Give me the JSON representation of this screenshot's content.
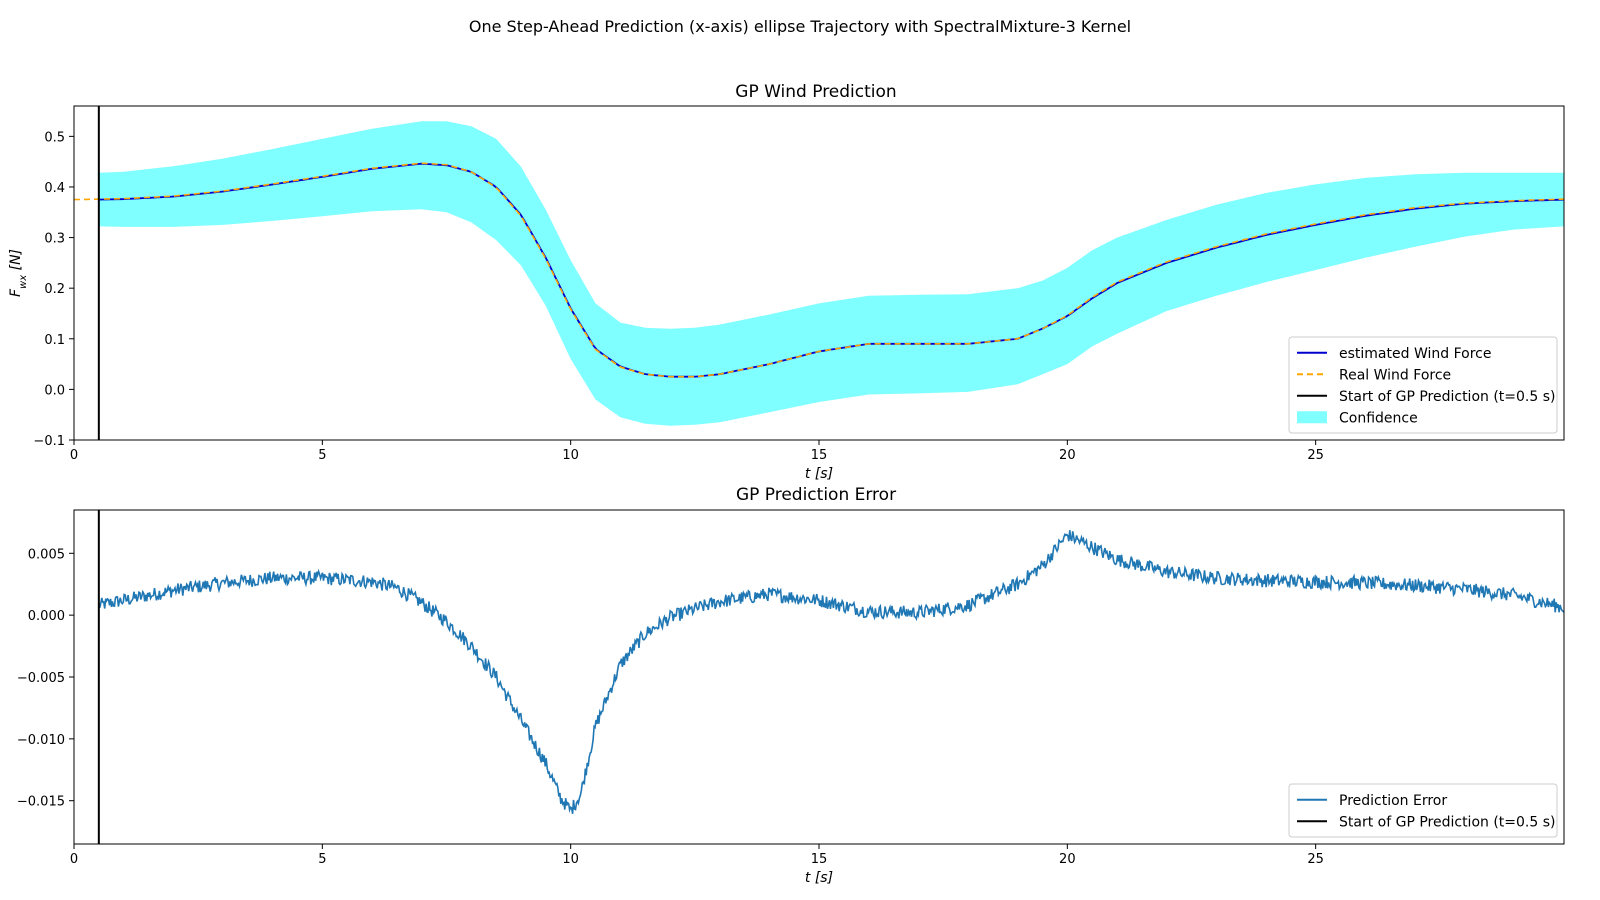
{
  "figure": {
    "title": "One Step-Ahead Prediction (x-axis) ellipse Trajectory with SpectralMixture-3 Kernel"
  },
  "colors": {
    "estimated": "#0000cc",
    "real": "#ffa500",
    "start_line": "#000000",
    "confidence": "#00ffff",
    "error": "#1f77b4"
  },
  "chart_data": [
    {
      "type": "line",
      "title": "GP Wind Prediction",
      "xlabel": "t [s]",
      "ylabel": "F_wx [N]",
      "ylabel_main": "F",
      "ylabel_sub": "wx",
      "ylabel_unit": " [N]",
      "xlim": [
        0,
        30
      ],
      "ylim": [
        -0.1,
        0.56
      ],
      "xticks": [
        0,
        5,
        10,
        15,
        20,
        25
      ],
      "xtick_labels": [
        "0",
        "5",
        "10",
        "15",
        "20",
        "25"
      ],
      "yticks": [
        -0.1,
        0.0,
        0.1,
        0.2,
        0.3,
        0.4,
        0.5
      ],
      "ytick_labels": [
        "−0.1",
        "0.0",
        "0.1",
        "0.2",
        "0.3",
        "0.4",
        "0.5"
      ],
      "grid": false,
      "legend_position": "lower-right",
      "vline_x": 0.5,
      "series": [
        {
          "name": "estimated Wind Force",
          "style": "solid",
          "x": [
            0.5,
            1,
            2,
            3,
            4,
            5,
            6,
            7,
            7.5,
            8,
            8.5,
            9,
            9.5,
            10,
            10.5,
            11,
            11.5,
            12,
            12.5,
            13,
            14,
            15,
            16,
            17,
            18,
            19,
            19.5,
            20,
            20.5,
            21,
            22,
            23,
            24,
            25,
            26,
            27,
            28,
            29,
            30
          ],
          "y": [
            0.375,
            0.376,
            0.381,
            0.391,
            0.405,
            0.42,
            0.436,
            0.446,
            0.443,
            0.43,
            0.4,
            0.345,
            0.26,
            0.16,
            0.08,
            0.045,
            0.03,
            0.025,
            0.025,
            0.03,
            0.05,
            0.075,
            0.09,
            0.09,
            0.09,
            0.1,
            0.12,
            0.145,
            0.18,
            0.21,
            0.25,
            0.28,
            0.305,
            0.325,
            0.343,
            0.357,
            0.367,
            0.372,
            0.375
          ]
        },
        {
          "name": "Real Wind Force",
          "style": "dashed",
          "x": [
            0,
            0.5,
            1,
            2,
            3,
            4,
            5,
            6,
            7,
            7.5,
            8,
            8.5,
            9,
            9.5,
            10,
            10.5,
            11,
            11.5,
            12,
            12.5,
            13,
            14,
            15,
            16,
            17,
            18,
            19,
            19.5,
            20,
            20.5,
            21,
            22,
            23,
            24,
            25,
            26,
            27,
            28,
            29,
            30
          ],
          "y": [
            0.375,
            0.376,
            0.377,
            0.382,
            0.392,
            0.406,
            0.421,
            0.437,
            0.447,
            0.444,
            0.43,
            0.399,
            0.343,
            0.258,
            0.158,
            0.079,
            0.044,
            0.03,
            0.025,
            0.025,
            0.03,
            0.05,
            0.075,
            0.09,
            0.09,
            0.09,
            0.1,
            0.12,
            0.146,
            0.182,
            0.212,
            0.252,
            0.282,
            0.307,
            0.327,
            0.345,
            0.359,
            0.368,
            0.373,
            0.376
          ]
        },
        {
          "name": "Confidence",
          "style": "band",
          "x": [
            0.5,
            1,
            2,
            3,
            4,
            5,
            6,
            7,
            7.5,
            8,
            8.5,
            9,
            9.5,
            10,
            10.5,
            11,
            11.5,
            12,
            12.5,
            13,
            14,
            15,
            16,
            17,
            18,
            19,
            19.5,
            20,
            20.5,
            21,
            22,
            23,
            24,
            25,
            26,
            27,
            28,
            29,
            30
          ],
          "lower": [
            0.322,
            0.321,
            0.321,
            0.325,
            0.333,
            0.342,
            0.352,
            0.356,
            0.35,
            0.33,
            0.295,
            0.245,
            0.165,
            0.06,
            -0.02,
            -0.055,
            -0.068,
            -0.072,
            -0.07,
            -0.065,
            -0.045,
            -0.025,
            -0.01,
            -0.008,
            -0.005,
            0.01,
            0.03,
            0.05,
            0.085,
            0.11,
            0.155,
            0.185,
            0.212,
            0.236,
            0.26,
            0.282,
            0.302,
            0.316,
            0.322
          ],
          "upper": [
            0.428,
            0.43,
            0.441,
            0.456,
            0.475,
            0.495,
            0.515,
            0.53,
            0.53,
            0.52,
            0.495,
            0.44,
            0.355,
            0.255,
            0.17,
            0.132,
            0.122,
            0.12,
            0.122,
            0.128,
            0.148,
            0.17,
            0.185,
            0.187,
            0.188,
            0.2,
            0.215,
            0.24,
            0.275,
            0.3,
            0.335,
            0.365,
            0.388,
            0.405,
            0.418,
            0.425,
            0.428,
            0.428,
            0.428
          ]
        }
      ],
      "legend": [
        {
          "label": "estimated Wind Force",
          "kind": "solid",
          "color_key": "estimated"
        },
        {
          "label": "Real Wind Force",
          "kind": "dashed",
          "color_key": "real"
        },
        {
          "label": "Start of GP Prediction (t=0.5 s)",
          "kind": "solid",
          "color_key": "start_line"
        },
        {
          "label": "Confidence",
          "kind": "patch",
          "color_key": "confidence"
        }
      ]
    },
    {
      "type": "line",
      "title": "GP Prediction Error",
      "xlabel": "t [s]",
      "xlim": [
        0,
        30
      ],
      "ylim": [
        -0.0185,
        0.0085
      ],
      "xticks": [
        0,
        5,
        10,
        15,
        20,
        25
      ],
      "xtick_labels": [
        "0",
        "5",
        "10",
        "15",
        "20",
        "25"
      ],
      "yticks": [
        -0.015,
        -0.01,
        -0.005,
        0.0,
        0.005
      ],
      "ytick_labels": [
        "−0.015",
        "−0.010",
        "−0.005",
        "0.000",
        "0.005"
      ],
      "grid": false,
      "legend_position": "lower-right",
      "vline_x": 0.5,
      "series": [
        {
          "name": "Prediction Error",
          "x": [
            0.5,
            1,
            2,
            3,
            4,
            5,
            6,
            6.5,
            7,
            7.5,
            8,
            8.5,
            9,
            9.5,
            9.8,
            10,
            10.2,
            10.5,
            11,
            11.5,
            12,
            12.5,
            13,
            14,
            15,
            16,
            17,
            18,
            19,
            19.5,
            20,
            20.5,
            21,
            22,
            23,
            24,
            25,
            26,
            27,
            28,
            29,
            30
          ],
          "y": [
            0.0008,
            0.0012,
            0.002,
            0.0026,
            0.003,
            0.003,
            0.0027,
            0.0022,
            0.001,
            -0.0005,
            -0.0025,
            -0.005,
            -0.0085,
            -0.012,
            -0.0148,
            -0.0158,
            -0.0145,
            -0.009,
            -0.004,
            -0.0015,
            -0.0002,
            0.0005,
            0.0011,
            0.0017,
            0.0012,
            0.0003,
            0.0002,
            0.0008,
            0.0025,
            0.004,
            0.0065,
            0.0055,
            0.0045,
            0.0035,
            0.003,
            0.0028,
            0.0027,
            0.0026,
            0.0024,
            0.0021,
            0.0016,
            0.0006
          ],
          "noise_amplitude": 0.00055
        }
      ],
      "legend": [
        {
          "label": "Prediction Error",
          "kind": "solid",
          "color_key": "error"
        },
        {
          "label": "Start of GP Prediction (t=0.5 s)",
          "kind": "solid",
          "color_key": "start_line"
        }
      ]
    }
  ]
}
